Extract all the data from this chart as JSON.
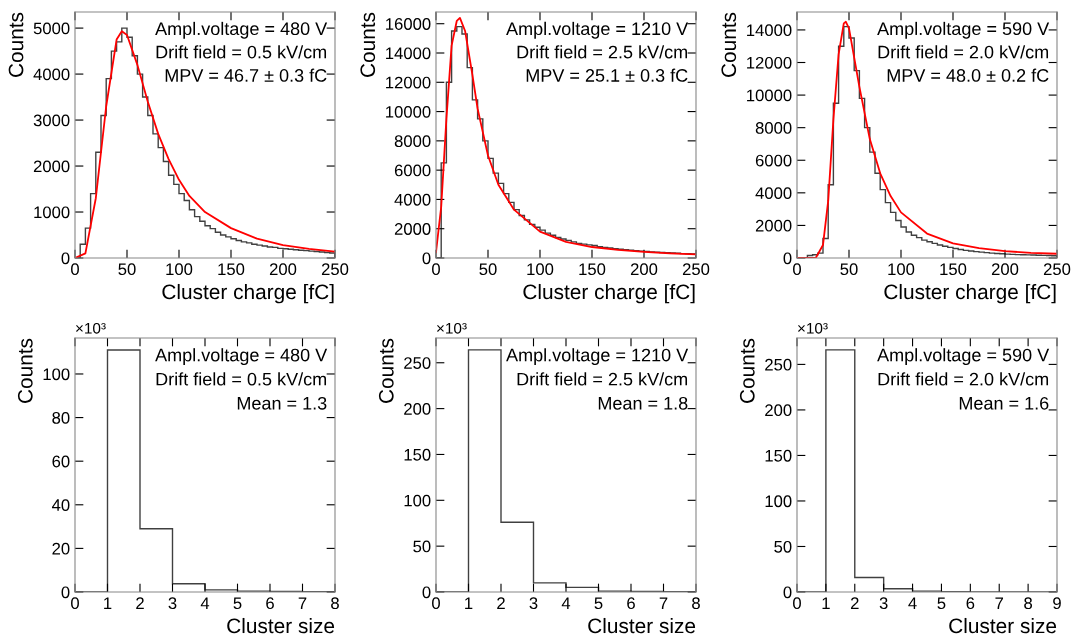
{
  "chart_data": [
    {
      "type": "histogram",
      "xlabel": "Cluster charge [fC]",
      "ylabel": "Counts",
      "color": "#404040",
      "bins": [
        0,
        5,
        10,
        15,
        20,
        25,
        30,
        35,
        40,
        45,
        50,
        55,
        60,
        65,
        70,
        75,
        80,
        85,
        90,
        95,
        100,
        105,
        110,
        115,
        120,
        125,
        130,
        135,
        140,
        145,
        150,
        155,
        160,
        165,
        170,
        175,
        180,
        185,
        190,
        195,
        200,
        205,
        210,
        215,
        220,
        225,
        230,
        235,
        240,
        245,
        250
      ],
      "values": [
        0,
        300,
        650,
        1400,
        2300,
        3100,
        3900,
        4500,
        4700,
        5000,
        4800,
        4400,
        4000,
        3500,
        3100,
        2700,
        2400,
        2100,
        1800,
        1600,
        1400,
        1250,
        1050,
        900,
        800,
        700,
        640,
        560,
        500,
        460,
        420,
        380,
        350,
        330,
        300,
        280,
        260,
        240,
        230,
        210,
        200,
        190,
        180,
        170,
        160,
        150,
        140,
        130,
        120,
        110
      ],
      "series": [
        {
          "type": "line",
          "color": "#ff0000",
          "x": [
            0,
            10,
            20,
            30,
            40,
            45,
            50,
            60,
            70,
            80,
            90,
            100,
            110,
            125,
            150,
            175,
            200,
            225,
            250
          ],
          "values": [
            0,
            100,
            1300,
            3300,
            4750,
            4930,
            4850,
            4200,
            3400,
            2700,
            2150,
            1700,
            1350,
            1000,
            650,
            420,
            280,
            200,
            140
          ]
        }
      ],
      "xlim": [
        0,
        250
      ],
      "xticks": [
        0,
        50,
        100,
        150,
        200,
        250
      ],
      "ylim": [
        0,
        5350
      ],
      "yticks": [
        0,
        1000,
        2000,
        3000,
        4000,
        5000
      ],
      "grid": false,
      "annotations": [
        "Ampl.voltage = 480 V",
        "Drift field = 0.5 kV/cm",
        "MPV = 46.7 ± 0.3 fC"
      ]
    },
    {
      "type": "histogram",
      "xlabel": "Cluster charge [fC]",
      "ylabel": "Counts",
      "color": "#404040",
      "bins": [
        0,
        5,
        10,
        15,
        20,
        25,
        30,
        35,
        40,
        45,
        50,
        55,
        60,
        65,
        70,
        75,
        80,
        85,
        90,
        95,
        100,
        105,
        110,
        115,
        120,
        125,
        130,
        135,
        140,
        145,
        150,
        155,
        160,
        165,
        170,
        175,
        180,
        185,
        190,
        195,
        200,
        205,
        210,
        215,
        220,
        225,
        230,
        235,
        240,
        245,
        250
      ],
      "values": [
        0,
        6500,
        12000,
        15500,
        15800,
        15300,
        13000,
        10800,
        9500,
        8000,
        6800,
        5800,
        5100,
        4400,
        3800,
        3300,
        2900,
        2600,
        2300,
        2100,
        1900,
        1700,
        1550,
        1400,
        1300,
        1200,
        1100,
        1000,
        950,
        900,
        850,
        780,
        720,
        680,
        640,
        600,
        560,
        530,
        500,
        470,
        450,
        420,
        400,
        380,
        360,
        340,
        320,
        300,
        290,
        270
      ],
      "series": [
        {
          "type": "line",
          "color": "#ff0000",
          "x": [
            0,
            5,
            10,
            15,
            20,
            23,
            28,
            35,
            40,
            50,
            60,
            75,
            100,
            125,
            150,
            175,
            200,
            225,
            250
          ],
          "values": [
            400,
            3500,
            9500,
            14500,
            16200,
            16400,
            15500,
            12500,
            10200,
            7000,
            5000,
            3300,
            1800,
            1100,
            750,
            550,
            420,
            320,
            250
          ]
        }
      ],
      "xlim": [
        0,
        250
      ],
      "xticks": [
        0,
        50,
        100,
        150,
        200,
        250
      ],
      "ylim": [
        0,
        16800
      ],
      "yticks": [
        0,
        2000,
        4000,
        6000,
        8000,
        10000,
        12000,
        14000,
        16000
      ],
      "grid": false,
      "annotations": [
        "Ampl.voltage = 1210 V",
        "Drift field = 2.5 kV/cm",
        "MPV = 25.1 ± 0.3 fC"
      ]
    },
    {
      "type": "histogram",
      "xlabel": "Cluster charge [fC]",
      "ylabel": "Counts",
      "color": "#404040",
      "bins": [
        0,
        5,
        10,
        15,
        20,
        25,
        30,
        35,
        40,
        45,
        50,
        55,
        60,
        65,
        70,
        75,
        80,
        85,
        90,
        95,
        100,
        105,
        110,
        115,
        120,
        125,
        130,
        135,
        140,
        145,
        150,
        155,
        160,
        165,
        170,
        175,
        180,
        185,
        190,
        195,
        200,
        205,
        210,
        215,
        220,
        225,
        230,
        235,
        240,
        245,
        250
      ],
      "values": [
        0,
        0,
        150,
        200,
        300,
        1200,
        4500,
        9500,
        13000,
        14200,
        13500,
        11500,
        9800,
        8000,
        6500,
        5200,
        4200,
        3400,
        2800,
        2300,
        1900,
        1600,
        1400,
        1250,
        1100,
        1000,
        900,
        800,
        720,
        650,
        580,
        520,
        470,
        430,
        390,
        360,
        330,
        300,
        280,
        260,
        240,
        220,
        210,
        200,
        190,
        180,
        170,
        160,
        150,
        140
      ],
      "series": [
        {
          "type": "line",
          "color": "#ff0000",
          "x": [
            0,
            18,
            25,
            30,
            35,
            40,
            45,
            47,
            50,
            60,
            70,
            80,
            90,
            100,
            125,
            150,
            175,
            200,
            225,
            250
          ],
          "values": [
            0,
            0,
            800,
            3500,
            8500,
            12500,
            14400,
            14500,
            14100,
            10500,
            7300,
            5200,
            3800,
            2800,
            1500,
            900,
            600,
            420,
            320,
            260
          ]
        }
      ],
      "xlim": [
        0,
        250
      ],
      "xticks": [
        0,
        50,
        100,
        150,
        200,
        250
      ],
      "ylim": [
        0,
        15100
      ],
      "yticks": [
        0,
        2000,
        4000,
        6000,
        8000,
        10000,
        12000,
        14000
      ],
      "grid": false,
      "annotations": [
        "Ampl.voltage = 590 V",
        "Drift field = 2.0 kV/cm",
        "MPV = 48.0 ± 0.2 fC"
      ]
    },
    {
      "type": "histogram",
      "xlabel": "Cluster size",
      "ylabel": "Counts",
      "subtitle": "×10³",
      "color": "#404040",
      "bins": [
        0,
        1,
        2,
        3,
        4,
        5,
        6,
        7,
        8
      ],
      "values": [
        0,
        111,
        29,
        3.8,
        1.0,
        0.4,
        0.2,
        0.1
      ],
      "xlim": [
        0,
        8
      ],
      "xticks": [
        0,
        1,
        2,
        3,
        4,
        5,
        6,
        7,
        8
      ],
      "ylim": [
        0,
        116.5
      ],
      "yticks": [
        0,
        20,
        40,
        60,
        80,
        100
      ],
      "grid": false,
      "annotations": [
        "Ampl.voltage = 480 V",
        "Drift field = 0.5 kV/cm",
        "Mean = 1.3"
      ]
    },
    {
      "type": "histogram",
      "xlabel": "Cluster size",
      "ylabel": "Counts",
      "subtitle": "×10³",
      "color": "#404040",
      "bins": [
        0,
        1,
        2,
        3,
        4,
        5,
        6,
        7,
        8
      ],
      "values": [
        0,
        264,
        76,
        10,
        5,
        1,
        0.5,
        0.3
      ],
      "xlim": [
        0,
        8
      ],
      "xticks": [
        0,
        1,
        2,
        3,
        4,
        5,
        6,
        7,
        8
      ],
      "ylim": [
        0,
        277
      ],
      "yticks": [
        0,
        50,
        100,
        150,
        200,
        250
      ],
      "grid": false,
      "annotations": [
        "Ampl.voltage = 1210 V",
        "Drift field = 2.5 kV/cm",
        "Mean = 1.8"
      ]
    },
    {
      "type": "histogram",
      "xlabel": "Cluster size",
      "ylabel": "Counts",
      "subtitle": "×10³",
      "color": "#404040",
      "bins": [
        0,
        1,
        2,
        3,
        4,
        5,
        6,
        7,
        8,
        9
      ],
      "values": [
        0,
        266,
        16,
        3.5,
        1,
        0.4,
        0.1,
        0.1,
        0.1
      ],
      "xlim": [
        0,
        9
      ],
      "xticks": [
        0,
        1,
        2,
        3,
        4,
        5,
        6,
        7,
        8,
        9
      ],
      "ylim": [
        0,
        279
      ],
      "yticks": [
        0,
        50,
        100,
        150,
        200,
        250
      ],
      "grid": false,
      "annotations": [
        "Ampl.voltage = 590 V",
        "Drift field = 2.0 kV/cm",
        "Mean = 1.6"
      ]
    }
  ]
}
